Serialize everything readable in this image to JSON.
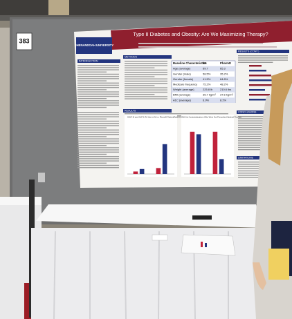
{
  "board_number": "383",
  "poster": {
    "university": "SHENANDOAH UNIVERSITY",
    "title": "Type II Diabetes and Obesity: Are We Maximizing Therapy?",
    "sections": [
      {
        "label": "INTRODUCTION",
        "column": "left",
        "row": 0
      },
      {
        "label": "METHODS",
        "column": "middle",
        "row": 0
      },
      {
        "label": "RESULTS (CONT.)",
        "column": "right",
        "row": 0
      },
      {
        "label": "RESULTS",
        "column": "middle",
        "row": 1
      },
      {
        "label": "CONCLUSIONS",
        "column": "right",
        "row": 1
      },
      {
        "label": "LIMITATIONS",
        "column": "right",
        "row": 2
      }
    ],
    "table": {
      "header": [
        "Baseline Characteristics",
        "IM",
        "PharmD"
      ],
      "rows": [
        [
          "Age (average)",
          "69.7",
          "65.3"
        ],
        [
          "Gender (male)",
          "58.5%",
          "35.2%"
        ],
        [
          "Gender (female)",
          "41.5%",
          "64.8%"
        ],
        [
          "Medicare frequency",
          "75.2%",
          "48.2%"
        ],
        [
          "Weight (average)",
          "225.8 lb",
          "210.6 lbs"
        ],
        [
          "BMI (average)",
          "35.7 kg/m²",
          "37.6 kg/m²"
        ],
        [
          "A1C (average)",
          "6.9%",
          "8.2%"
        ]
      ]
    },
    "charts": [
      {
        "title": "SGLT-2I and GLP-1 RA Use in IM vs. PharmD Patients",
        "series": [
          {
            "color": "#c0223b",
            "values": [
              5,
              12
            ]
          },
          {
            "color": "#23357f",
            "values": [
              10,
              60
            ]
          }
        ]
      },
      {
        "title": "Patients With No Contraindications Who Were Not Prescribed Optimal Therapy",
        "series": [
          {
            "color": "#c0223b",
            "values": [
              85,
              85
            ]
          },
          {
            "color": "#23357f",
            "values": [
              80,
              30
            ]
          }
        ]
      }
    ]
  }
}
